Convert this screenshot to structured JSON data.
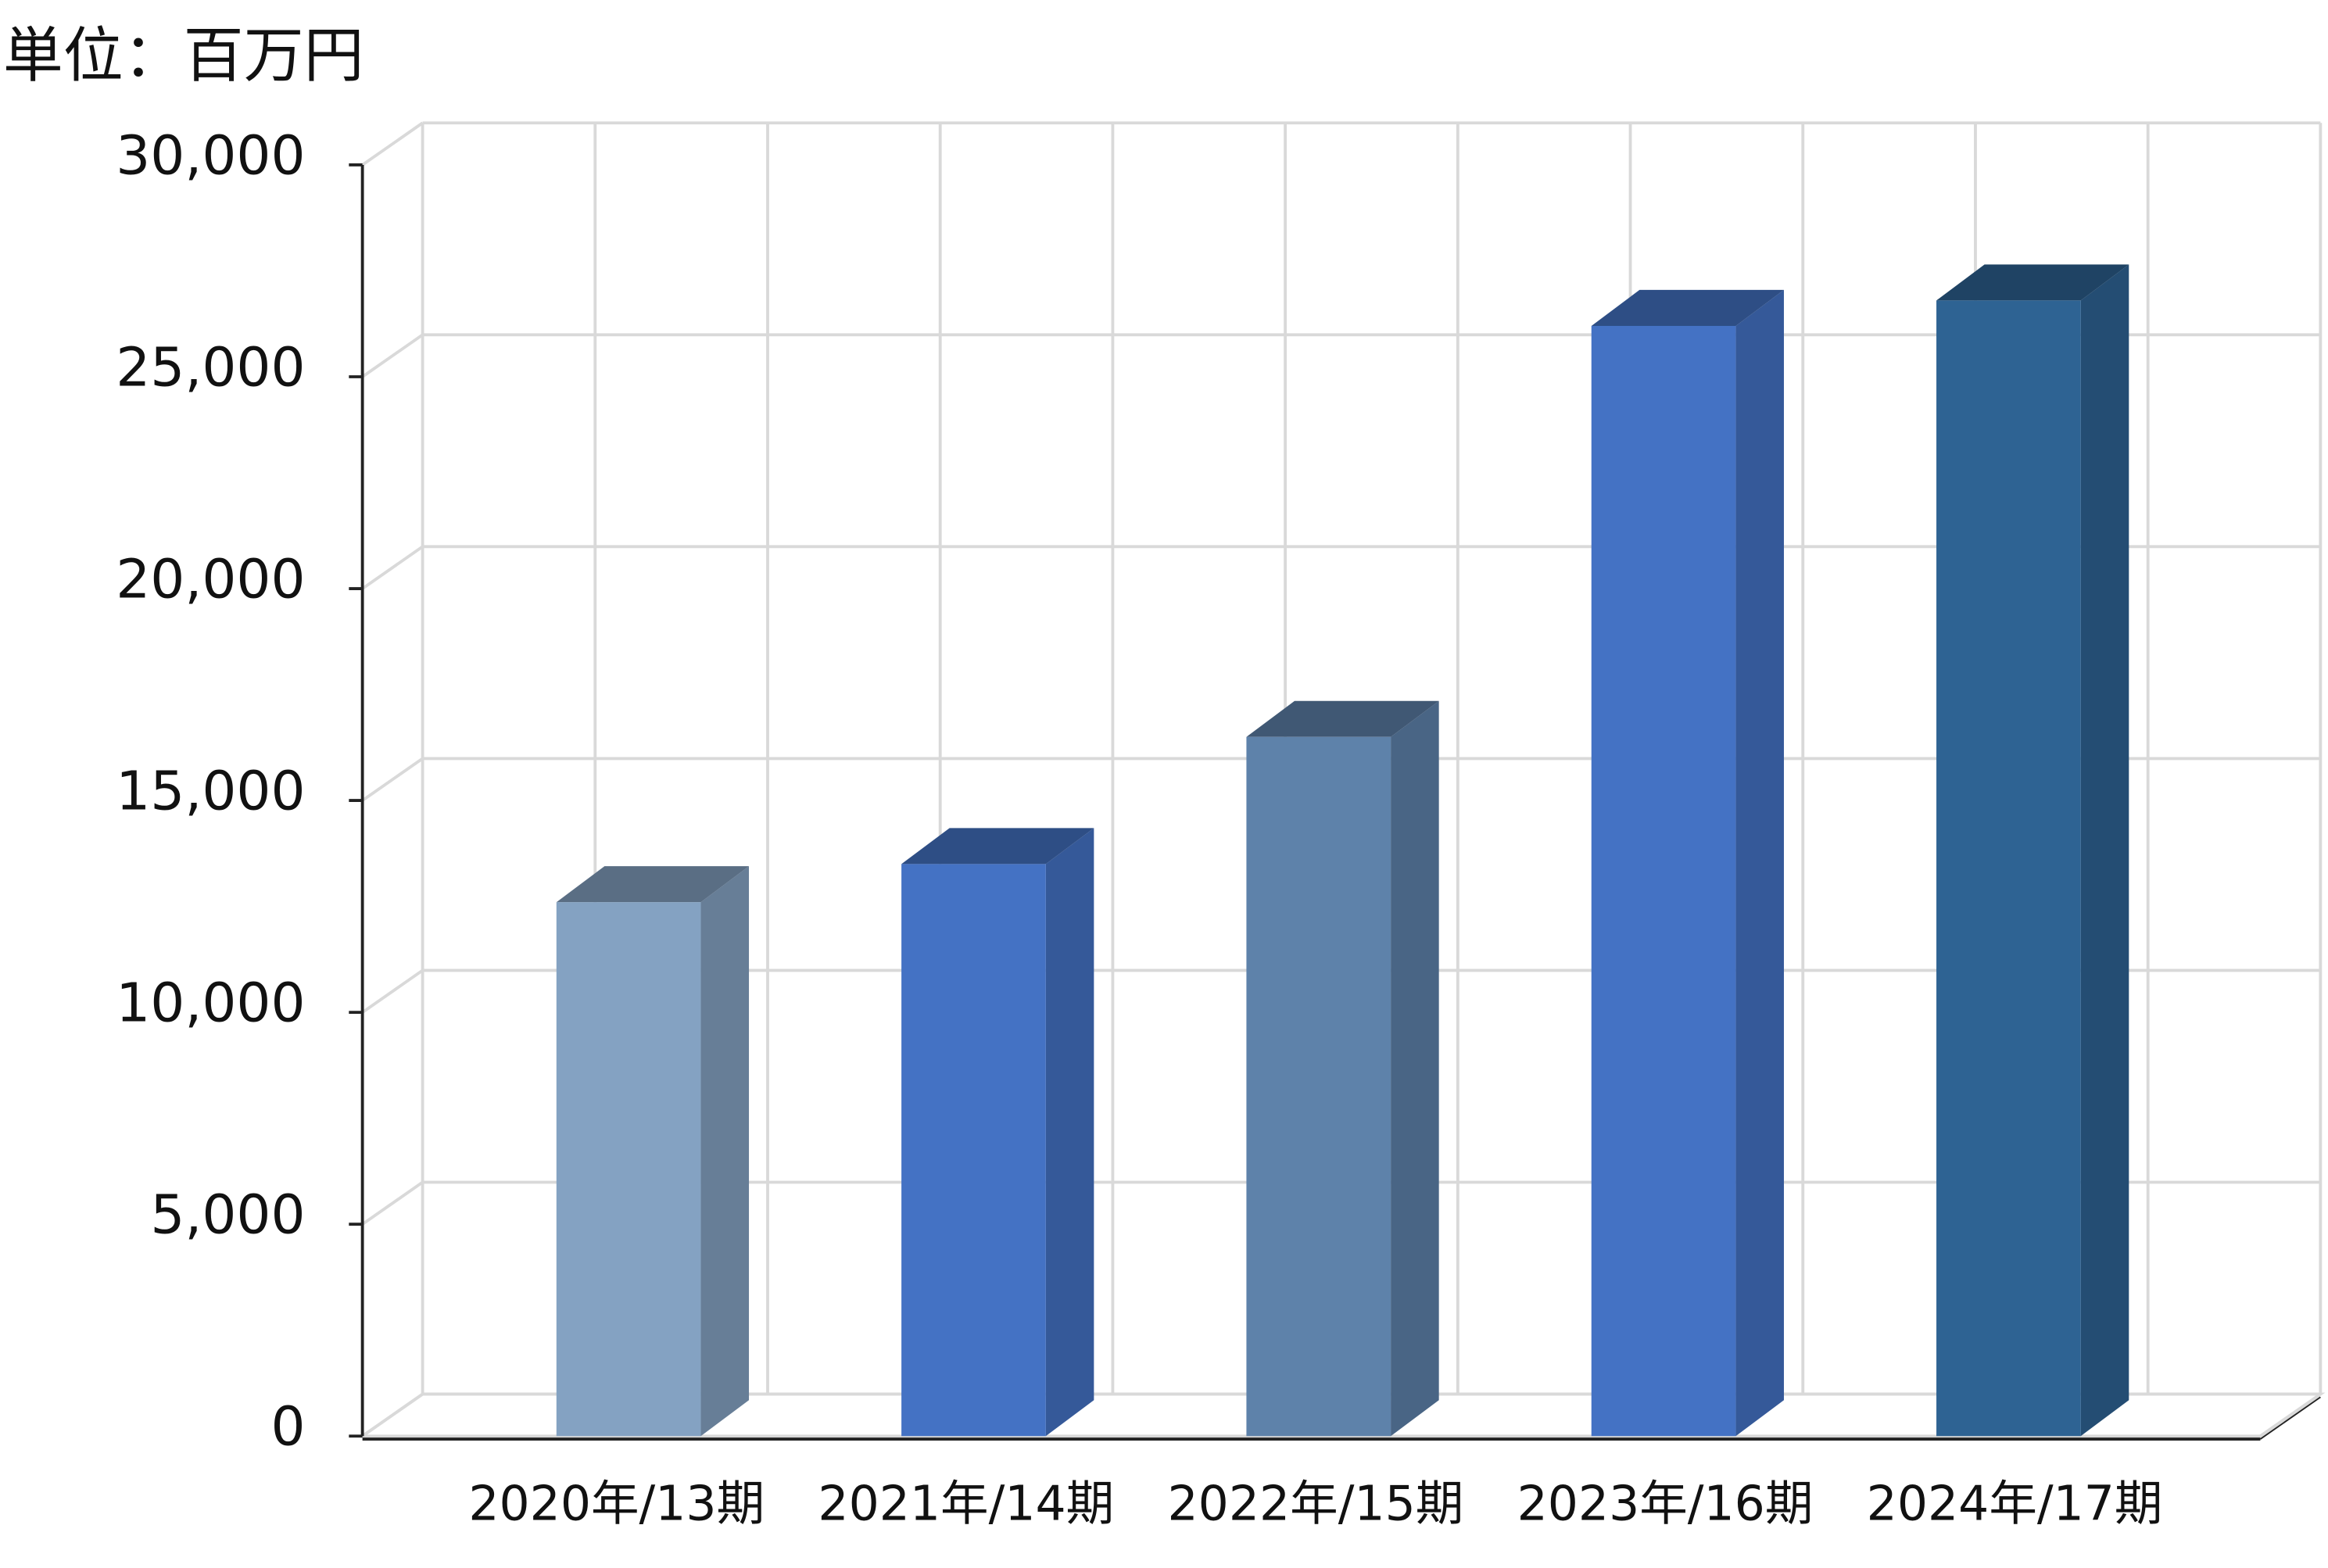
{
  "chart_data": {
    "type": "bar3d",
    "title": "単位：百万円",
    "categories": [
      "2020年/13期",
      "2021年/14期",
      "2022年/15期",
      "2023年/16期",
      "2024年/17期"
    ],
    "values": [
      12600,
      13500,
      16500,
      26200,
      26800
    ],
    "colors": [
      "#84a2c2",
      "#4472c4",
      "#5e82aa",
      "#4472c4",
      "#2e6393"
    ],
    "ylim": [
      0,
      30000
    ],
    "yticks": [
      0,
      {
        "value": 5000,
        "label": "5,000"
      },
      {
        "value": 10000,
        "label": "10,000"
      },
      {
        "value": 15000,
        "label": "15,000"
      },
      {
        "value": 20000,
        "label": "20,000"
      },
      {
        "value": 25000,
        "label": "25,000"
      },
      {
        "value": 30000,
        "label": "30,000"
      }
    ],
    "grid": true
  }
}
